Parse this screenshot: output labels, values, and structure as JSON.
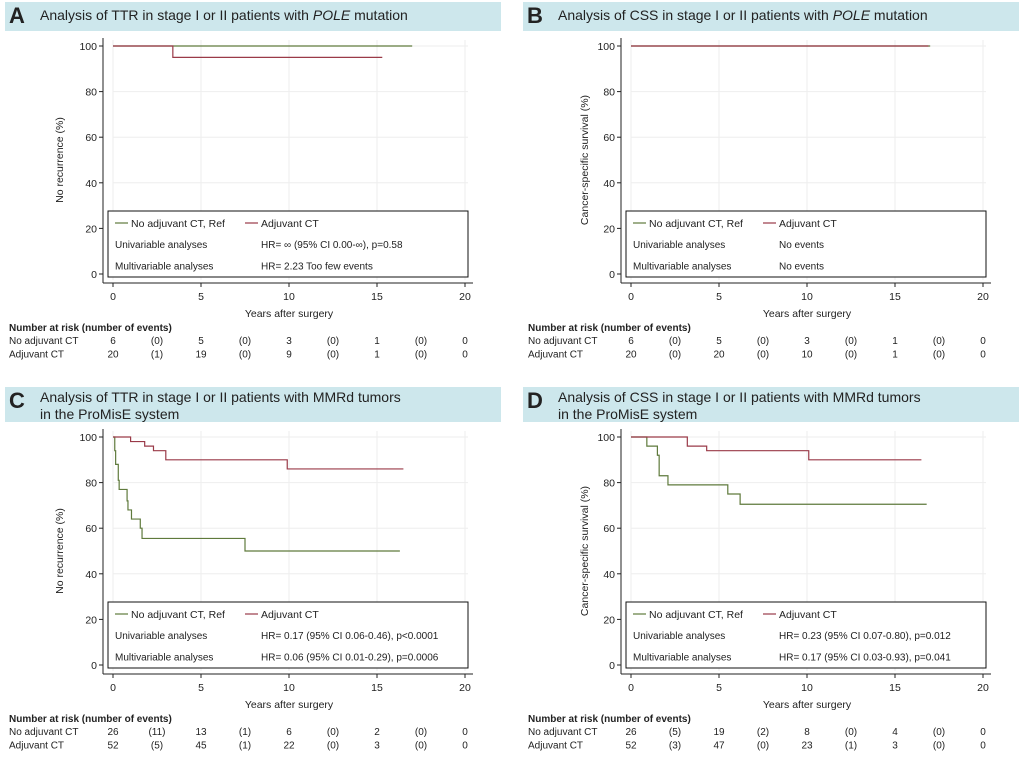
{
  "colors": {
    "no_adjuvant": "#5f7a3c",
    "adjuvant": "#9a3a48",
    "title_bar": "#cde7ec"
  },
  "chart_data": [
    {
      "type": "line",
      "panel_letter": "A",
      "title": "Analysis of TTR in stage I or II patients with ",
      "title_italic": "POLE",
      "title_tail": " mutation",
      "title_line2": "",
      "xlabel": "Years after surgery",
      "ylabel": "No recurrence (%)",
      "xlim": [
        0,
        20
      ],
      "ylim": [
        0,
        100
      ],
      "xticks": [
        0,
        5,
        10,
        15,
        20
      ],
      "yticks": [
        0,
        20,
        40,
        60,
        80,
        100
      ],
      "grid": true,
      "legend": {
        "placement": "bottom",
        "entries": [
          "No adjuvant CT, Ref",
          "Adjuvant CT"
        ],
        "rows": [
          [
            "Univariable analyses",
            "HR= ∞ (95% CI 0.00-∞), p=0.58"
          ],
          [
            "Multivariable analyses",
            "HR= 2.23 Too few events"
          ]
        ]
      },
      "series": [
        {
          "name": "No adjuvant CT, Ref",
          "color_key": "no_adjuvant",
          "steps": [
            [
              0,
              100
            ],
            [
              17,
              100
            ]
          ]
        },
        {
          "name": "Adjuvant CT",
          "color_key": "adjuvant",
          "steps": [
            [
              0,
              100
            ],
            [
              3.4,
              95
            ],
            [
              15.3,
              95
            ]
          ]
        }
      ],
      "risk_table": {
        "header": "Number at risk (number of events)",
        "rows": [
          {
            "label": "No adjuvant CT",
            "values": [
              "6",
              "(0)",
              "5",
              "(0)",
              "3",
              "(0)",
              "1",
              "(0)",
              "0"
            ]
          },
          {
            "label": "Adjuvant CT",
            "values": [
              "20",
              "(1)",
              "19",
              "(0)",
              "9",
              "(0)",
              "1",
              "(0)",
              "0"
            ]
          }
        ]
      }
    },
    {
      "type": "line",
      "panel_letter": "B",
      "title": "Analysis of CSS in stage I or II patients with ",
      "title_italic": "POLE",
      "title_tail": " mutation",
      "title_line2": "",
      "xlabel": "Years after surgery",
      "ylabel": "Cancer-specific survival (%)",
      "xlim": [
        0,
        20
      ],
      "ylim": [
        0,
        100
      ],
      "xticks": [
        0,
        5,
        10,
        15,
        20
      ],
      "yticks": [
        0,
        20,
        40,
        60,
        80,
        100
      ],
      "grid": true,
      "legend": {
        "placement": "bottom",
        "entries": [
          "No adjuvant CT, Ref",
          "Adjuvant CT"
        ],
        "rows": [
          [
            "Univariable analyses",
            "No events"
          ],
          [
            "Multivariable analyses",
            "No events"
          ]
        ]
      },
      "series": [
        {
          "name": "No adjuvant CT, Ref",
          "color_key": "no_adjuvant",
          "steps": [
            [
              0,
              100
            ],
            [
              17,
              100
            ]
          ]
        },
        {
          "name": "Adjuvant CT",
          "color_key": "adjuvant",
          "steps": [
            [
              0,
              100
            ],
            [
              16.9,
              100
            ]
          ]
        }
      ],
      "risk_table": {
        "header": "Number at risk (number of events)",
        "rows": [
          {
            "label": "No adjuvant CT",
            "values": [
              "6",
              "(0)",
              "5",
              "(0)",
              "3",
              "(0)",
              "1",
              "(0)",
              "0"
            ]
          },
          {
            "label": "Adjuvant CT",
            "values": [
              "20",
              "(0)",
              "20",
              "(0)",
              "10",
              "(0)",
              "1",
              "(0)",
              "0"
            ]
          }
        ]
      }
    },
    {
      "type": "line",
      "panel_letter": "C",
      "title": "Analysis of TTR in stage I or II patients with MMRd tumors",
      "title_italic": "",
      "title_tail": "",
      "title_line2": "in the ProMisE system",
      "xlabel": "Years after surgery",
      "ylabel": "No recurrence (%)",
      "xlim": [
        0,
        20
      ],
      "ylim": [
        0,
        100
      ],
      "xticks": [
        0,
        5,
        10,
        15,
        20
      ],
      "yticks": [
        0,
        20,
        40,
        60,
        80,
        100
      ],
      "grid": true,
      "legend": {
        "placement": "bottom",
        "entries": [
          "No adjuvant CT, Ref",
          "Adjuvant CT"
        ],
        "rows": [
          [
            "Univariable analyses",
            "HR= 0.17 (95% CI 0.06-0.46), p<0.0001"
          ],
          [
            "Multivariable analyses",
            "HR= 0.06 (95% CI 0.01-0.29), p=0.0006"
          ]
        ]
      },
      "series": [
        {
          "name": "No adjuvant CT, Ref",
          "color_key": "no_adjuvant",
          "steps": [
            [
              0,
              100
            ],
            [
              0.1,
              94
            ],
            [
              0.15,
              88
            ],
            [
              0.3,
              81
            ],
            [
              0.35,
              77
            ],
            [
              0.8,
              72
            ],
            [
              0.85,
              68
            ],
            [
              1.05,
              64
            ],
            [
              1.55,
              60
            ],
            [
              1.65,
              55.5
            ],
            [
              7.5,
              50
            ],
            [
              16.3,
              50
            ]
          ]
        },
        {
          "name": "Adjuvant CT",
          "color_key": "adjuvant",
          "steps": [
            [
              0,
              100
            ],
            [
              1.0,
              98
            ],
            [
              1.8,
              96
            ],
            [
              2.3,
              94
            ],
            [
              3.0,
              90
            ],
            [
              9.9,
              86
            ],
            [
              16.5,
              86
            ]
          ]
        }
      ],
      "risk_table": {
        "header": "Number at risk (number of events)",
        "rows": [
          {
            "label": "No adjuvant CT",
            "values": [
              "26",
              "(11)",
              "13",
              "(1)",
              "6",
              "(0)",
              "2",
              "(0)",
              "0"
            ]
          },
          {
            "label": "Adjuvant CT",
            "values": [
              "52",
              "(5)",
              "45",
              "(1)",
              "22",
              "(0)",
              "3",
              "(0)",
              "0"
            ]
          }
        ]
      }
    },
    {
      "type": "line",
      "panel_letter": "D",
      "title": "Analysis of CSS  in stage I or II patients with MMRd tumors",
      "title_italic": "",
      "title_tail": "",
      "title_line2": "in the ProMisE system",
      "xlabel": "Years after surgery",
      "ylabel": "Cancer-specific survival (%)",
      "xlim": [
        0,
        20
      ],
      "ylim": [
        0,
        100
      ],
      "xticks": [
        0,
        5,
        10,
        15,
        20
      ],
      "yticks": [
        0,
        20,
        40,
        60,
        80,
        100
      ],
      "grid": true,
      "legend": {
        "placement": "bottom",
        "entries": [
          "No adjuvant CT, Ref",
          "Adjuvant CT"
        ],
        "rows": [
          [
            "Univariable analyses",
            "HR= 0.23 (95% CI 0.07-0.80), p=0.012"
          ],
          [
            "Multivariable analyses",
            "HR= 0.17 (95% CI 0.03-0.93), p=0.041"
          ]
        ]
      },
      "series": [
        {
          "name": "No adjuvant CT, Ref",
          "color_key": "no_adjuvant",
          "steps": [
            [
              0,
              100
            ],
            [
              0.9,
              96
            ],
            [
              1.5,
              92
            ],
            [
              1.6,
              83
            ],
            [
              2.1,
              79
            ],
            [
              5.5,
              75
            ],
            [
              6.2,
              70.5
            ],
            [
              16.8,
              70.5
            ]
          ]
        },
        {
          "name": "Adjuvant CT",
          "color_key": "adjuvant",
          "steps": [
            [
              0,
              100
            ],
            [
              3.2,
              96
            ],
            [
              4.3,
              94
            ],
            [
              10.1,
              90
            ],
            [
              16.5,
              90
            ]
          ]
        }
      ],
      "risk_table": {
        "header": "Number at risk (number of events)",
        "rows": [
          {
            "label": "No adjuvant CT",
            "values": [
              "26",
              "(5)",
              "19",
              "(2)",
              "8",
              "(0)",
              "4",
              "(0)",
              "0"
            ]
          },
          {
            "label": "Adjuvant CT",
            "values": [
              "52",
              "(3)",
              "47",
              "(0)",
              "23",
              "(1)",
              "3",
              "(0)",
              "0"
            ]
          }
        ]
      }
    }
  ]
}
